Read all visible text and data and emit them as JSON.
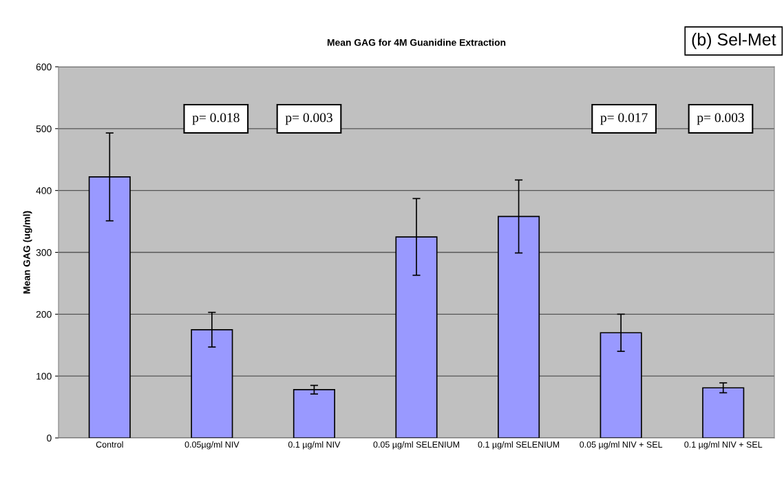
{
  "chart_data": {
    "type": "bar",
    "title": "Mean GAG for 4M Guanidine Extraction",
    "ylabel": "Mean GAG (ug/ml)",
    "categories": [
      "Control",
      "0.05µg/ml NIV",
      "0.1 µg/ml NIV",
      "0.05 µg/ml SELENIUM",
      "0.1 µg/ml SELENIUM",
      "0.05 µg/ml NIV + SEL",
      "0.1 µg/ml NIV + SEL"
    ],
    "values": [
      422,
      175,
      78,
      325,
      358,
      170,
      81
    ],
    "errors": [
      71,
      28,
      7,
      62,
      59,
      30,
      8
    ],
    "color": "#9999ff",
    "ylim": [
      0,
      600
    ],
    "yticks": [
      0,
      100,
      200,
      300,
      400,
      500,
      600
    ],
    "grid": "y",
    "annotations": [
      "p= 0.018",
      "p= 0.003",
      "p= 0.017",
      "p= 0.003",
      "(b) Sel-Met"
    ]
  }
}
